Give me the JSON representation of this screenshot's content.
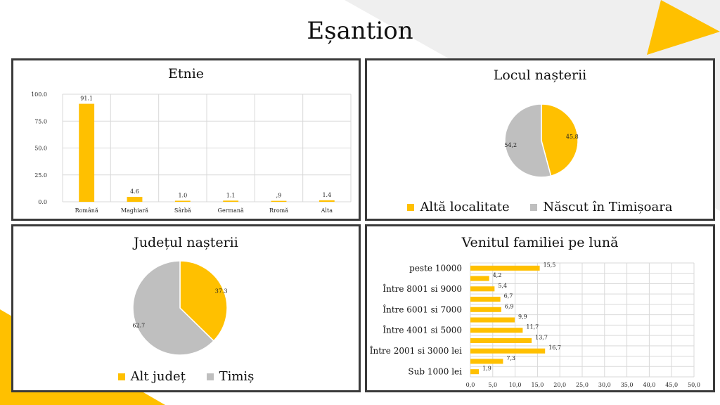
{
  "page": {
    "title": "Eșantion"
  },
  "colors": {
    "accent": "#FFC000",
    "secondary": "#BFBFBF",
    "frame": "#3A3A3A",
    "backdrop": "#EFEFEF"
  },
  "chart_data": [
    {
      "type": "bar",
      "title": "Etnie",
      "categories": [
        "Română",
        "Maghiară",
        "Sârbă",
        "Germană",
        "Rromă",
        "Alta"
      ],
      "values": [
        91.1,
        4.6,
        1.0,
        1.1,
        0.9,
        1.4
      ],
      "value_labels": [
        "91.1",
        "4.6",
        "1.0",
        "1.1",
        ",9",
        "1.4"
      ],
      "yticks": [
        "0.0",
        "25.0",
        "50.0",
        "75.0",
        "100.0"
      ],
      "ylim": [
        0,
        100
      ],
      "grid": true
    },
    {
      "type": "pie",
      "title": "Locul nașterii",
      "labels": [
        "Altă localitate",
        "Născut în Timișoara"
      ],
      "values": [
        45.8,
        54.2
      ],
      "value_labels": [
        "45,8",
        "54,2"
      ],
      "legend": "bottom"
    },
    {
      "type": "pie",
      "title": "Județul nașterii",
      "labels": [
        "Alt județ",
        "Timiș"
      ],
      "values": [
        37.3,
        62.7
      ],
      "value_labels": [
        "37.3",
        "62.7"
      ],
      "legend": "bottom"
    },
    {
      "type": "bar",
      "orientation": "horizontal",
      "title": "Venitul familiei pe lună",
      "categories": [
        "Sub 1000 lei",
        "",
        "Între 2001 si 3000 lei",
        "",
        "Între 4001 si 5000",
        "",
        "Între 6001 si 7000",
        "",
        "Între 8001 si 9000",
        "",
        "peste 10000"
      ],
      "values": [
        1.9,
        7.3,
        16.7,
        13.7,
        11.7,
        9.9,
        6.9,
        6.7,
        5.4,
        4.2,
        15.5
      ],
      "value_labels": [
        "1,9",
        "7,3",
        "16,7",
        "13,7",
        "11,7",
        "9,9",
        "6,9",
        "6,7",
        "5,4",
        "4,2",
        "15,5"
      ],
      "xticks": [
        "0,0",
        "5,0",
        "10,0",
        "15,0",
        "20,0",
        "25,0",
        "30,0",
        "35,0",
        "40,0",
        "45,0",
        "50,0"
      ],
      "xlim": [
        0,
        50
      ],
      "grid": true
    }
  ]
}
